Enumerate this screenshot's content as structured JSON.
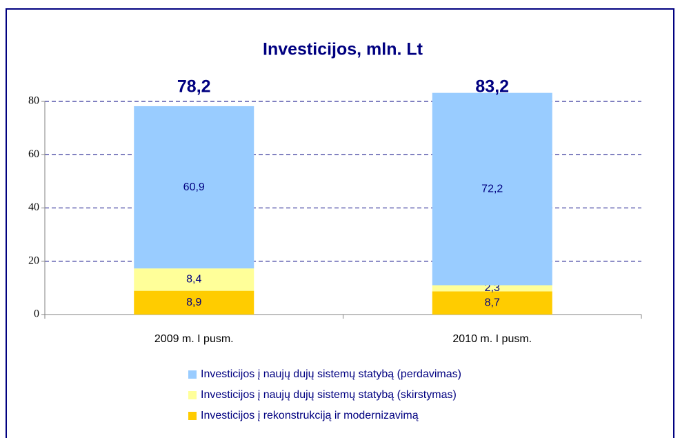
{
  "chart_data": {
    "type": "stacked_bar",
    "title": "Investicijos, mln. Lt",
    "categories": [
      "2009 m. I pusm.",
      "2010 m. I pusm."
    ],
    "series": [
      {
        "name": "Investicijos į naujų dujų sistemų statybą (perdavimas)",
        "color": "#99ccff",
        "values": [
          60.9,
          72.2
        ],
        "value_labels": [
          "60,9",
          "72,2"
        ]
      },
      {
        "name": "Investicijos į naujų dujų sistemų statybą (skirstymas)",
        "color": "#ffff99",
        "values": [
          8.4,
          2.3
        ],
        "value_labels": [
          "8,4",
          "2,3"
        ]
      },
      {
        "name": "Investicijos į rekonstrukciją ir modernizavimą",
        "color": "#ffcc00",
        "values": [
          8.9,
          8.7
        ],
        "value_labels": [
          "8,9",
          "8,7"
        ]
      }
    ],
    "totals": [
      78.2,
      83.2
    ],
    "total_labels": [
      "78,2",
      "83,2"
    ],
    "ylim": [
      0,
      80
    ],
    "yticks": [
      0,
      20,
      40,
      60,
      80
    ],
    "grid": true,
    "legend": "bottom"
  }
}
